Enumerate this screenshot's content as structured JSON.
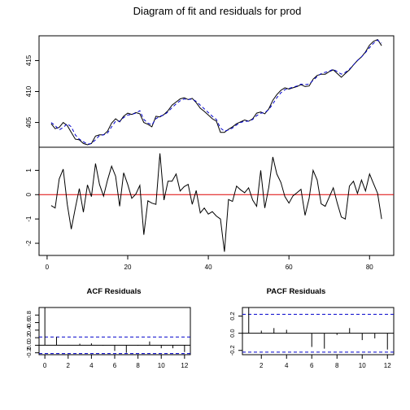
{
  "chart_data": [
    {
      "type": "line",
      "title": "Diagram of fit and residuals for prod",
      "ylim": [
        401,
        419
      ],
      "yticks": [
        "405",
        "410",
        "415"
      ],
      "series": [
        {
          "name": "",
          "color": "#000000",
          "style": "solid",
          "values": [
            404.8,
            404,
            404.2,
            405,
            404.5,
            403.4,
            402.3,
            402.2,
            401.6,
            401.4,
            401.6,
            402.8,
            403,
            403,
            403.6,
            404.9,
            405.6,
            405.1,
            406,
            406.5,
            406.3,
            406.6,
            406.4,
            405,
            404.7,
            404.3,
            406,
            405.9,
            406.3,
            406.9,
            407.8,
            408.3,
            408.8,
            409,
            408.7,
            408.9,
            408.2,
            407.3,
            406.8,
            406.2,
            405.6,
            405.2,
            403.4,
            403.4,
            403.9,
            404.3,
            404.8,
            405.1,
            405.4,
            405.2,
            405.6,
            406.5,
            406.7,
            406.4,
            407.2,
            408.6,
            409.5,
            410.2,
            410.6,
            410.4,
            410.6,
            410.8,
            411.1,
            410.8,
            410.9,
            412,
            412.6,
            412.8,
            412.8,
            413.2,
            413.5,
            412.9,
            412.3,
            412.9,
            413.5,
            414.3,
            415,
            415.6,
            416.4,
            417.5,
            418.1,
            418.4,
            417.4
          ]
        },
        {
          "name": "",
          "color": "#0000cc",
          "style": "dashed",
          "values": [
            405,
            404.5,
            403.8,
            404.2,
            404.8,
            404.3,
            403,
            402.3,
            401.9,
            401.5,
            401.6,
            402.2,
            402.9,
            403,
            403.3,
            404.3,
            405.2,
            405.2,
            405.8,
            406.2,
            406.3,
            406.5,
            406.9,
            405.5,
            404.9,
            404.6,
            405.6,
            406,
            406.2,
            406.7,
            407.4,
            408,
            408.5,
            408.8,
            408.7,
            408.8,
            408.4,
            407.8,
            407.2,
            406.6,
            406,
            405.5,
            404.1,
            403.6,
            403.8,
            404.1,
            404.6,
            405,
            405.2,
            405.2,
            405.5,
            406.1,
            406.5,
            406.6,
            407.1,
            408,
            409,
            409.8,
            410.3,
            410.5,
            410.7,
            410.9,
            411.2,
            411.1,
            411.2,
            411.8,
            412.4,
            412.9,
            413.1,
            413.3,
            413.6,
            413.2,
            412.8,
            413.1,
            413.6,
            414.3,
            415,
            415.6,
            416.3,
            417.1,
            417.8,
            418.3,
            417.8
          ]
        }
      ]
    },
    {
      "type": "line",
      "xlim": [
        -2,
        86
      ],
      "ylim": [
        -2.5,
        1.95
      ],
      "xticks": [
        0,
        20,
        40,
        60,
        80
      ],
      "yticks": [
        -2,
        -1,
        0,
        1
      ],
      "refline": {
        "y": 0,
        "color": "#dd0000"
      },
      "values": [
        -0.45,
        -0.55,
        0.65,
        1.05,
        -0.4,
        -1.42,
        -0.55,
        0.25,
        -0.72,
        0.4,
        -0.08,
        1.28,
        0.42,
        -0.06,
        0.6,
        1.17,
        0.76,
        -0.48,
        0.9,
        0.42,
        -0.15,
        0.02,
        0.38,
        -1.65,
        -0.25,
        -0.35,
        -0.4,
        1.7,
        -0.22,
        0.55,
        0.55,
        0.85,
        0.15,
        0.33,
        0.42,
        -0.4,
        0.17,
        -0.75,
        -0.55,
        -0.8,
        -0.7,
        -0.88,
        -1.0,
        -2.35,
        -0.2,
        -0.28,
        0.35,
        0.2,
        0.08,
        0.28,
        -0.22,
        -0.48,
        1.0,
        -0.55,
        0.3,
        1.55,
        0.85,
        0.5,
        -0.08,
        -0.35,
        -0.05,
        0.08,
        0.22,
        -0.85,
        -0.15,
        1.0,
        0.6,
        -0.38,
        -0.48,
        -0.1,
        0.28,
        -0.35,
        -0.92,
        -1.0,
        0.35,
        0.55,
        0.05,
        0.6,
        0.15,
        0.85,
        0.45,
        0.05,
        -1.0
      ]
    },
    {
      "type": "bar",
      "title": "ACF Residuals",
      "ylim": [
        -0.25,
        1.0
      ],
      "yticks": [
        "-0.2",
        "0.0",
        "0.2",
        "0.4",
        "0.6",
        "0.8"
      ],
      "xticks": [
        0,
        2,
        4,
        6,
        8,
        10,
        12
      ],
      "confidence": 0.22,
      "lags": [
        0,
        1,
        2,
        3,
        4,
        5,
        6,
        7,
        8,
        9,
        10,
        11,
        12
      ],
      "values": [
        1.0,
        0.22,
        0.01,
        0.04,
        0.05,
        -0.01,
        -0.15,
        -0.2,
        -0.01,
        0.1,
        -0.08,
        -0.08,
        -0.18
      ]
    },
    {
      "type": "bar",
      "title": "PACF Residuals",
      "ylim": [
        -0.25,
        0.3
      ],
      "yticks": [
        "-0.2",
        "0.0",
        "0.2"
      ],
      "xticks": [
        2,
        4,
        6,
        8,
        10,
        12
      ],
      "confidence": 0.22,
      "lags": [
        1,
        2,
        3,
        4,
        5,
        6,
        7,
        8,
        9,
        10,
        11,
        12
      ],
      "values": [
        0.3,
        0.03,
        0.06,
        0.04,
        0.0,
        -0.16,
        -0.18,
        -0.02,
        0.06,
        -0.08,
        -0.06,
        -0.19
      ]
    }
  ]
}
